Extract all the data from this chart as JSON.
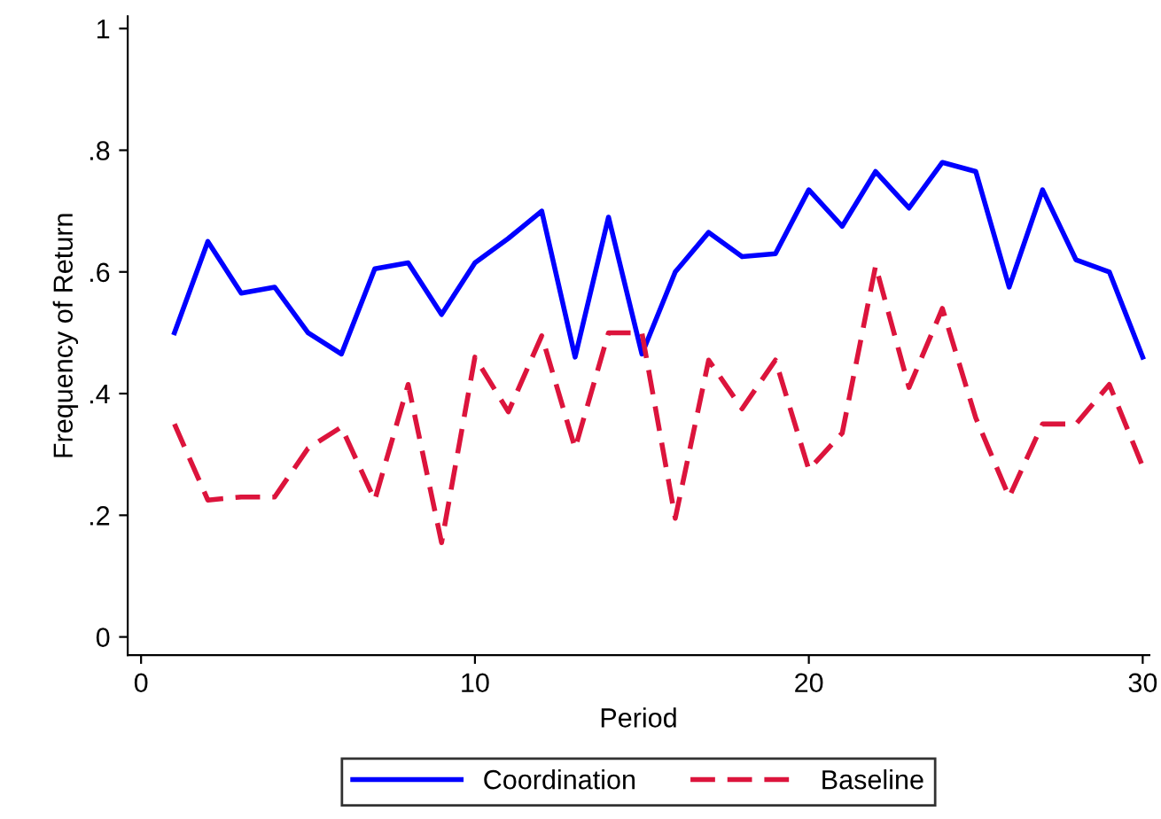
{
  "chart_data": {
    "type": "line",
    "xlabel": "Period",
    "ylabel": "Frequency of Return",
    "x": [
      1,
      2,
      3,
      4,
      5,
      6,
      7,
      8,
      9,
      10,
      11,
      12,
      13,
      14,
      15,
      16,
      17,
      18,
      19,
      20,
      21,
      22,
      23,
      24,
      25,
      26,
      27,
      28,
      29,
      30
    ],
    "series": [
      {
        "name": "Coordination",
        "color": "#0000ff",
        "line_style": "solid",
        "values": [
          0.5,
          0.65,
          0.565,
          0.575,
          0.5,
          0.465,
          0.605,
          0.615,
          0.53,
          0.615,
          0.655,
          0.7,
          0.46,
          0.69,
          0.465,
          0.6,
          0.665,
          0.625,
          0.63,
          0.735,
          0.675,
          0.765,
          0.705,
          0.78,
          0.765,
          0.575,
          0.735,
          0.62,
          0.6,
          0.46
        ]
      },
      {
        "name": "Baseline",
        "color": "#dc143c",
        "line_style": "dashed",
        "values": [
          0.35,
          0.225,
          0.23,
          0.23,
          0.31,
          0.345,
          0.225,
          0.415,
          0.155,
          0.46,
          0.37,
          0.495,
          0.31,
          0.5,
          0.5,
          0.195,
          0.455,
          0.375,
          0.455,
          0.275,
          0.335,
          0.61,
          0.41,
          0.54,
          0.36,
          0.23,
          0.35,
          0.35,
          0.415,
          0.28
        ]
      }
    ],
    "xlim": [
      -0.4,
      30.2
    ],
    "ylim": [
      -0.03,
      1.02
    ],
    "xticks": [
      0,
      10,
      20,
      30
    ],
    "yticks": [
      {
        "value": 0,
        "label": "0"
      },
      {
        "value": 0.2,
        "label": ".2"
      },
      {
        "value": 0.4,
        "label": ".4"
      },
      {
        "value": 0.6,
        "label": ".6"
      },
      {
        "value": 0.8,
        "label": ".8"
      },
      {
        "value": 1,
        "label": "1"
      }
    ],
    "grid": false,
    "legend": "bottom",
    "marker": "none"
  }
}
